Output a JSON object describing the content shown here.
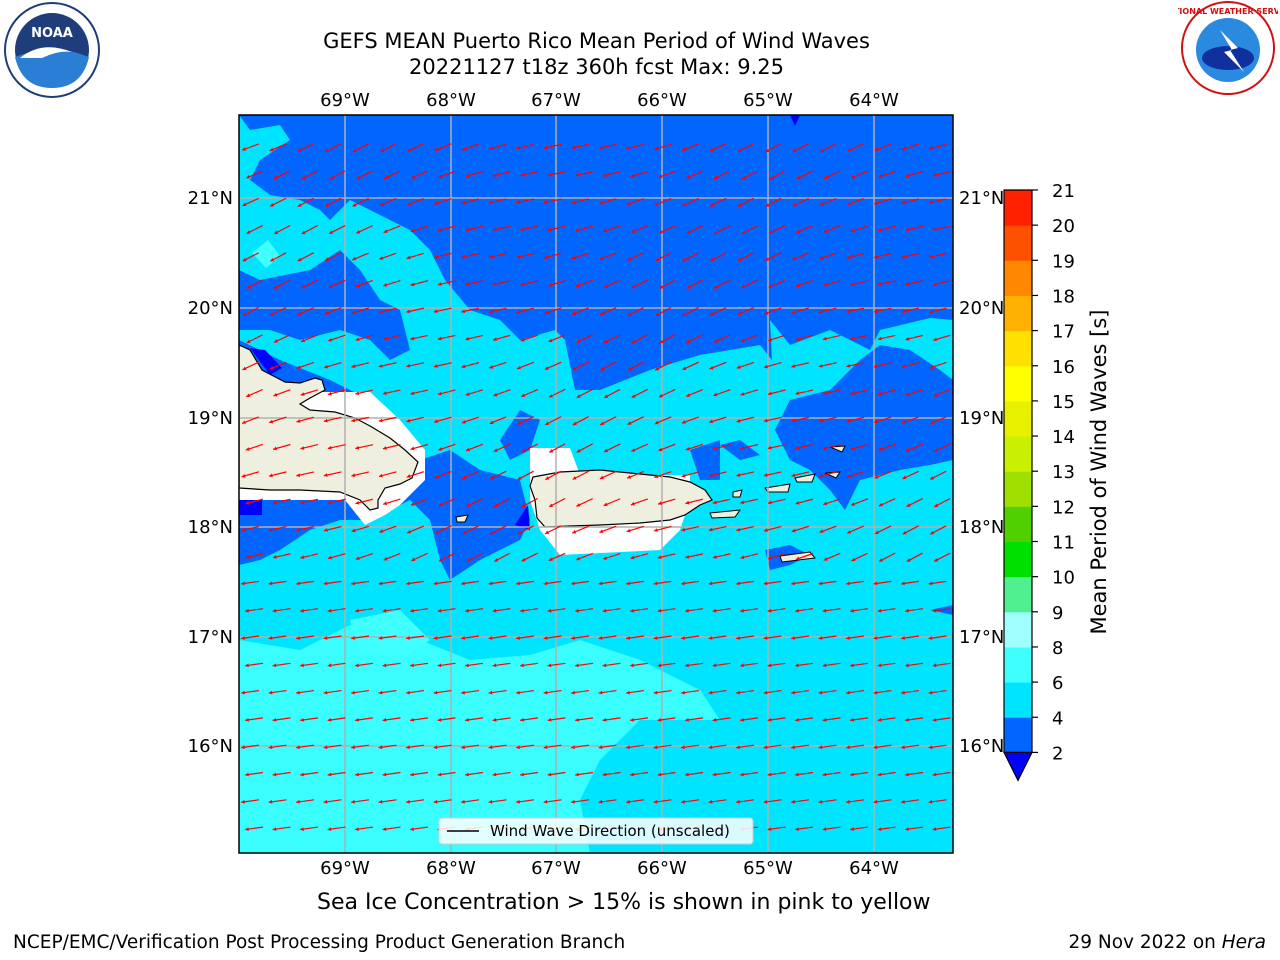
{
  "header": {
    "title_line1": "GEFS MEAN Puerto Rico Mean Period of Wind Waves",
    "title_line2": "20221127 t18z 360h fcst   Max: 9.25"
  },
  "logos": {
    "left": {
      "name": "noaa-logo",
      "text": "NOAA"
    },
    "right": {
      "name": "nws-logo",
      "text": "NATIONAL WEATHER SERVICE"
    }
  },
  "map": {
    "lon_ticks": [
      "69°W",
      "68°W",
      "67°W",
      "66°W",
      "65°W",
      "64°W"
    ],
    "lat_ticks": [
      "21°N",
      "20°N",
      "19°N",
      "18°N",
      "17°N",
      "16°N"
    ],
    "legend_label": "Wind Wave Direction (unscaled)",
    "arrow_color": "#ff0000",
    "land_color": "#efefe0"
  },
  "colorbar": {
    "label": "Mean Period of Wind Waves [s]",
    "ticks": [
      "2",
      "4",
      "6",
      "8",
      "9",
      "10",
      "11",
      "12",
      "13",
      "14",
      "15",
      "16",
      "17",
      "18",
      "19",
      "20",
      "21"
    ],
    "colors": [
      "#0066ff",
      "#00e5ff",
      "#40ffff",
      "#a0ffff",
      "#50f090",
      "#00e000",
      "#50d000",
      "#a0e000",
      "#c8f000",
      "#e8f000",
      "#ffff00",
      "#ffe000",
      "#ffb000",
      "#ff8800",
      "#ff5000",
      "#ff2000"
    ],
    "under_color": "#0000ff"
  },
  "note": "Sea Ice Concentration > 15% is shown in pink to yellow",
  "footer": {
    "left": "NCEP/EMC/Verification Post Processing Product Generation Branch",
    "right_date": "29 Nov 2022 on ",
    "right_machine": "Hera"
  }
}
